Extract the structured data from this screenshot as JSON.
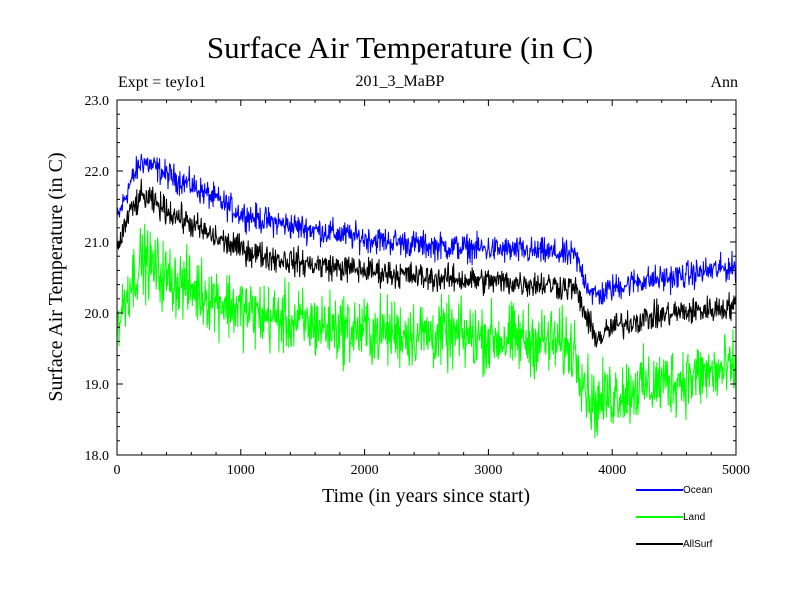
{
  "header": {
    "title": "Surface Air Temperature (in C)",
    "left": "Expt = teyIo1",
    "center": "201_3_MaBP",
    "right": "Ann"
  },
  "chart_data": {
    "type": "line",
    "title": "Surface Air Temperature (in C)",
    "xlabel": "Time (in years since start)",
    "ylabel": "Surface Air Temperature (in C)",
    "xlim": [
      0,
      5000
    ],
    "ylim": [
      18.0,
      23.0
    ],
    "xticks": [
      0,
      1000,
      2000,
      3000,
      4000,
      5000
    ],
    "yticks": [
      "18.0",
      "19.0",
      "20.0",
      "21.0",
      "22.0",
      "23.0"
    ],
    "legend_position": "bottom-right outside",
    "series": [
      {
        "name": "Ocean",
        "color": "#0000ff",
        "noise": 0.12,
        "x": [
          0,
          100,
          200,
          250,
          400,
          600,
          800,
          1000,
          1200,
          1500,
          2000,
          2500,
          3000,
          3500,
          3700,
          3800,
          3850,
          3900,
          4000,
          4200,
          4500,
          4800,
          5000
        ],
        "values": [
          21.3,
          21.8,
          22.15,
          22.1,
          21.95,
          21.8,
          21.6,
          21.4,
          21.3,
          21.2,
          21.05,
          20.95,
          20.9,
          20.85,
          20.8,
          20.4,
          20.25,
          20.25,
          20.35,
          20.45,
          20.5,
          20.6,
          20.65
        ]
      },
      {
        "name": "Land",
        "color": "#00ff00",
        "noise": 0.3,
        "x": [
          0,
          100,
          200,
          250,
          400,
          600,
          800,
          1000,
          1200,
          1500,
          2000,
          2500,
          3000,
          3500,
          3700,
          3800,
          3850,
          3900,
          4000,
          4200,
          4500,
          4800,
          5000
        ],
        "values": [
          19.8,
          20.4,
          20.75,
          20.7,
          20.5,
          20.35,
          20.2,
          20.05,
          19.95,
          19.85,
          19.75,
          19.7,
          19.65,
          19.6,
          19.5,
          18.9,
          18.7,
          18.75,
          18.85,
          18.95,
          19.05,
          19.15,
          19.2
        ]
      },
      {
        "name": "AllSurf",
        "color": "#000000",
        "noise": 0.12,
        "x": [
          0,
          100,
          200,
          250,
          400,
          600,
          800,
          1000,
          1200,
          1500,
          2000,
          2500,
          3000,
          3500,
          3700,
          3800,
          3850,
          3900,
          4000,
          4200,
          4500,
          4800,
          5000
        ],
        "values": [
          20.9,
          21.4,
          21.65,
          21.6,
          21.45,
          21.25,
          21.05,
          20.9,
          20.8,
          20.7,
          20.6,
          20.5,
          20.45,
          20.4,
          20.35,
          19.9,
          19.7,
          19.65,
          19.8,
          19.9,
          20.0,
          20.05,
          20.1
        ]
      }
    ]
  }
}
